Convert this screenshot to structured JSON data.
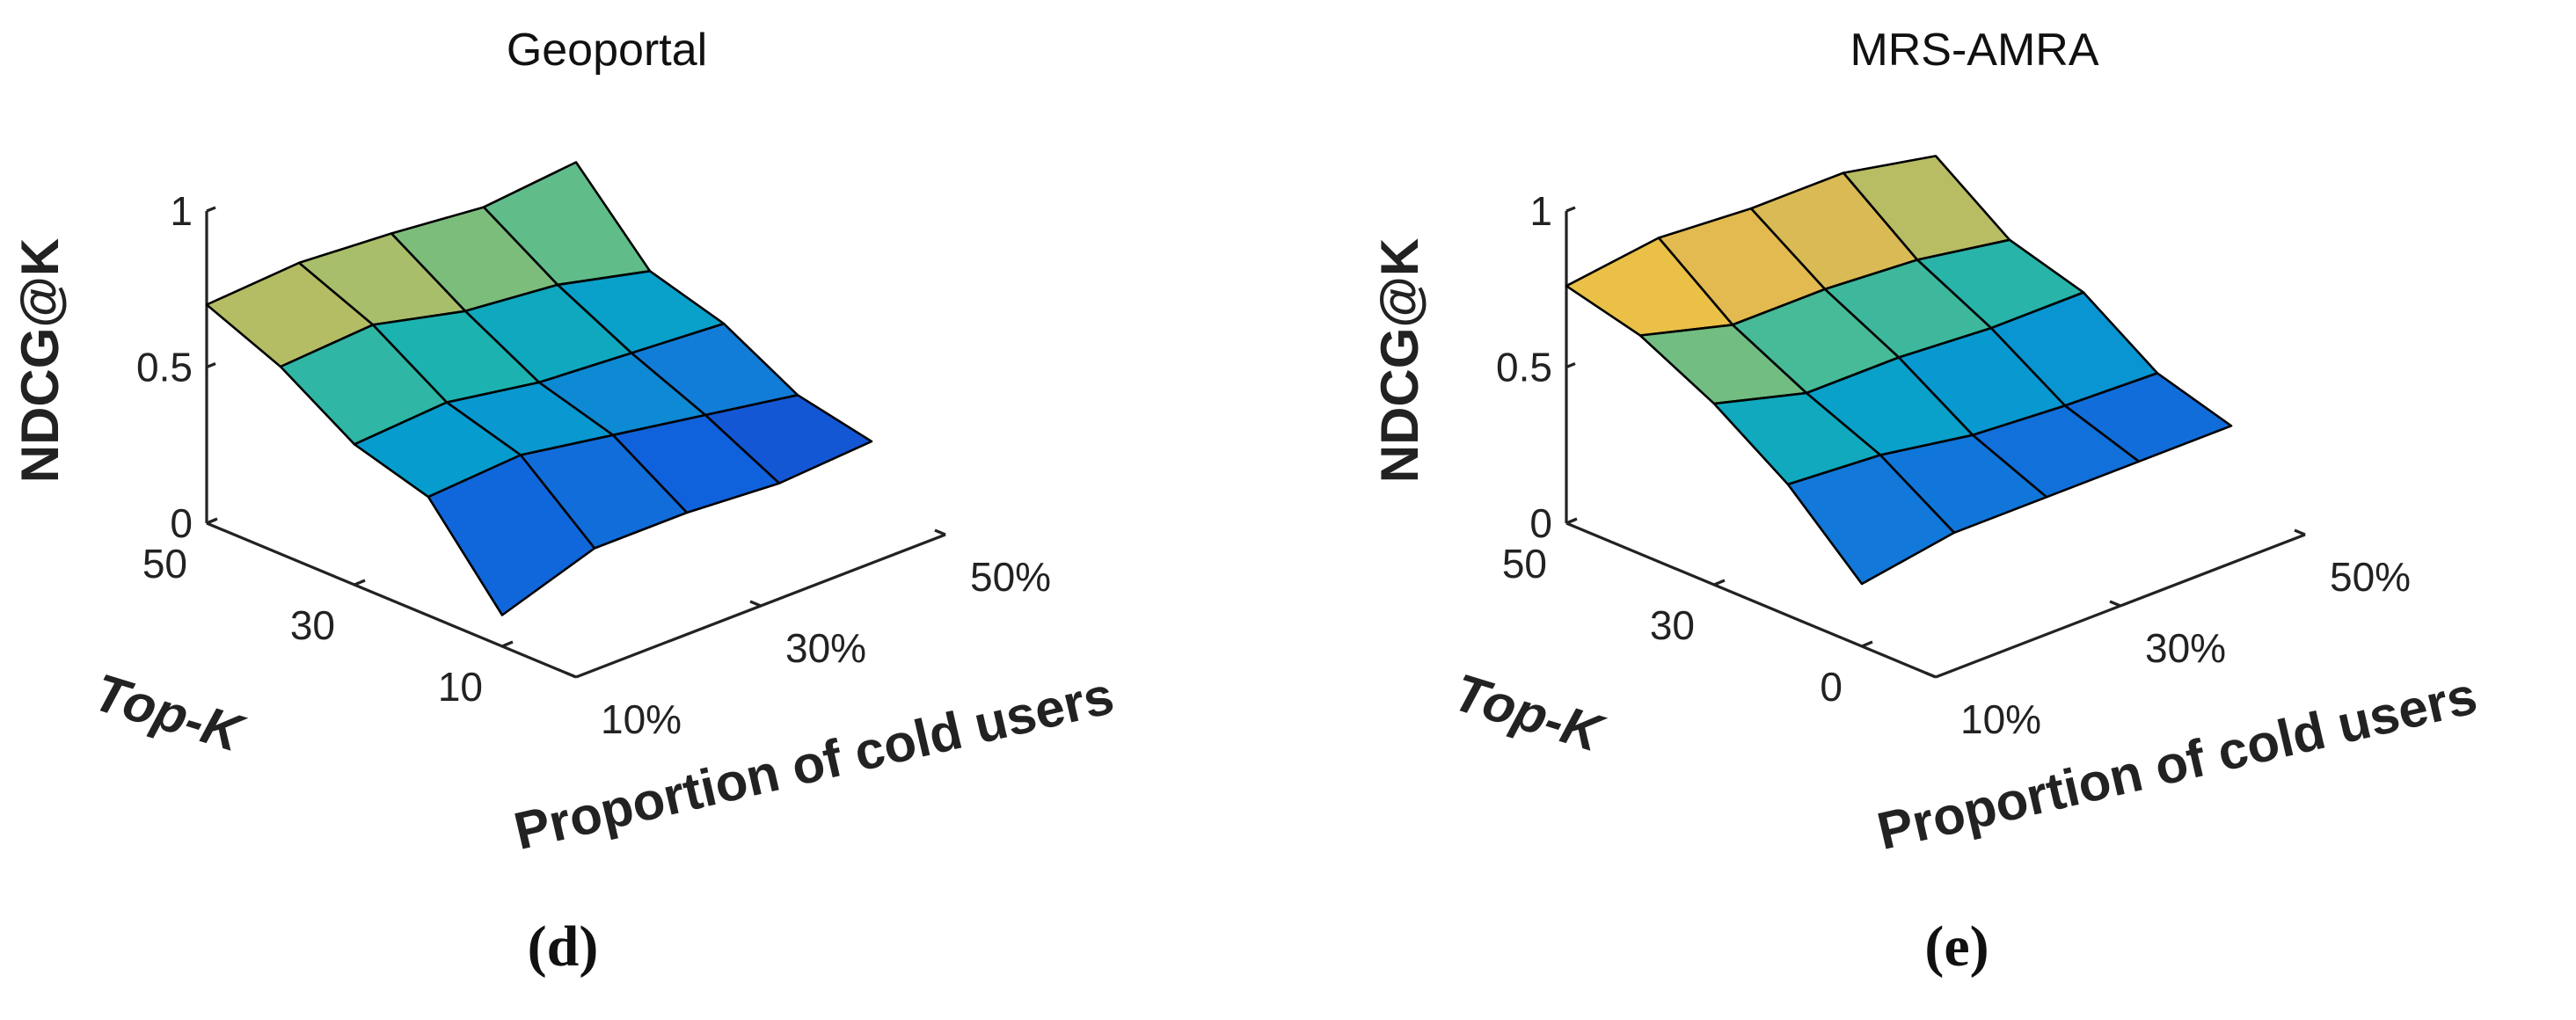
{
  "chart_data": [
    {
      "type": "surface",
      "title": "Geoportal",
      "panel_label": "(d)",
      "zlabel": "NDCG@K",
      "ylabel": "Top-K",
      "xlabel": "Proportion  of  cold users",
      "z_ticks": [
        "0",
        "0.5",
        "1"
      ],
      "y_ticks": [
        "50",
        "30",
        "10"
      ],
      "x_ticks": [
        "10%",
        "30%",
        "50%"
      ],
      "zlim": [
        0,
        1
      ],
      "top_k": [
        50,
        40,
        30,
        20,
        10
      ],
      "cold_user_proportion": [
        "10%",
        "20%",
        "30%",
        "40%",
        "50%"
      ],
      "ndcg": [
        [
          0.7,
          0.72,
          0.7,
          0.67,
          0.7
        ],
        [
          0.6,
          0.62,
          0.55,
          0.52,
          0.45
        ],
        [
          0.45,
          0.47,
          0.42,
          0.4,
          0.38
        ],
        [
          0.38,
          0.4,
          0.35,
          0.3,
          0.25
        ],
        [
          0.1,
          0.2,
          0.2,
          0.18,
          0.2
        ]
      ]
    },
    {
      "type": "surface",
      "title": "MRS-AMRA",
      "panel_label": "(e)",
      "zlabel": "NDCG@K",
      "ylabel": "Top-K",
      "xlabel": "Proportion  of  cold users",
      "z_ticks": [
        "0",
        "0.5",
        "1"
      ],
      "y_ticks": [
        "50",
        "30",
        "0"
      ],
      "x_ticks": [
        "10%",
        "30%",
        "50%"
      ],
      "zlim": [
        0,
        1
      ],
      "top_k": [
        50,
        40,
        30,
        20,
        10
      ],
      "cold_user_proportion": [
        "10%",
        "20%",
        "30%",
        "40%",
        "50%"
      ],
      "ndcg": [
        [
          0.76,
          0.8,
          0.78,
          0.78,
          0.72
        ],
        [
          0.7,
          0.62,
          0.62,
          0.6,
          0.55
        ],
        [
          0.58,
          0.5,
          0.5,
          0.48,
          0.48
        ],
        [
          0.42,
          0.4,
          0.35,
          0.33,
          0.32
        ],
        [
          0.2,
          0.25,
          0.25,
          0.25,
          0.25
        ]
      ]
    }
  ]
}
